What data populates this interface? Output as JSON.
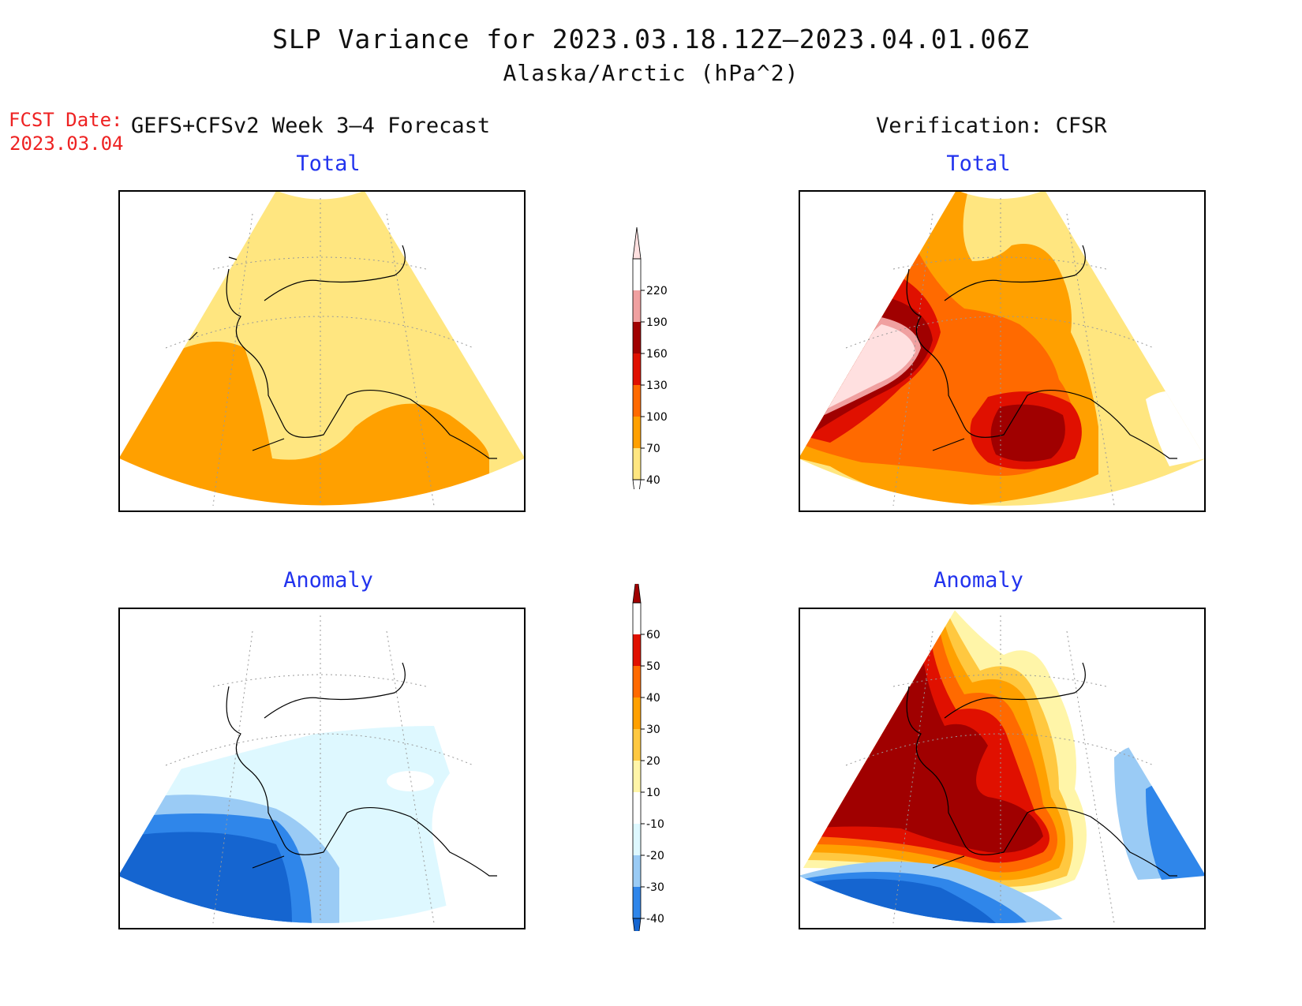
{
  "title": {
    "line1": "SLP Variance for 2023.03.18.12Z–2023.04.01.06Z",
    "line2": "Alaska/Arctic (hPa^2)"
  },
  "forecast": {
    "date_label": "FCST Date:",
    "date_value": "2023.03.04",
    "header": "GEFS+CFSv2 Week 3–4 Forecast"
  },
  "verification": {
    "header": "Verification: CFSR"
  },
  "panels": {
    "forecast_total_title": "Total",
    "verification_total_title": "Total",
    "forecast_anomaly_title": "Anomaly",
    "verification_anomaly_title": "Anomaly"
  },
  "colorbars": {
    "total": {
      "levels": [
        40,
        70,
        100,
        130,
        160,
        190,
        220
      ],
      "colors": [
        "#ffffff",
        "#ffe680",
        "#ffa000",
        "#ff6a00",
        "#e01000",
        "#a00000",
        "#f0a0a0",
        "#ffe0e0"
      ]
    },
    "anomaly": {
      "levels": [
        -40,
        -30,
        -20,
        -10,
        10,
        20,
        30,
        40,
        50,
        60
      ],
      "colors": [
        "#1565d0",
        "#2f86ea",
        "#9acbf5",
        "#def8ff",
        "#ffffff",
        "#fff5a8",
        "#ffc840",
        "#ffa000",
        "#ff6a00",
        "#e01000",
        "#a00000"
      ]
    }
  }
}
